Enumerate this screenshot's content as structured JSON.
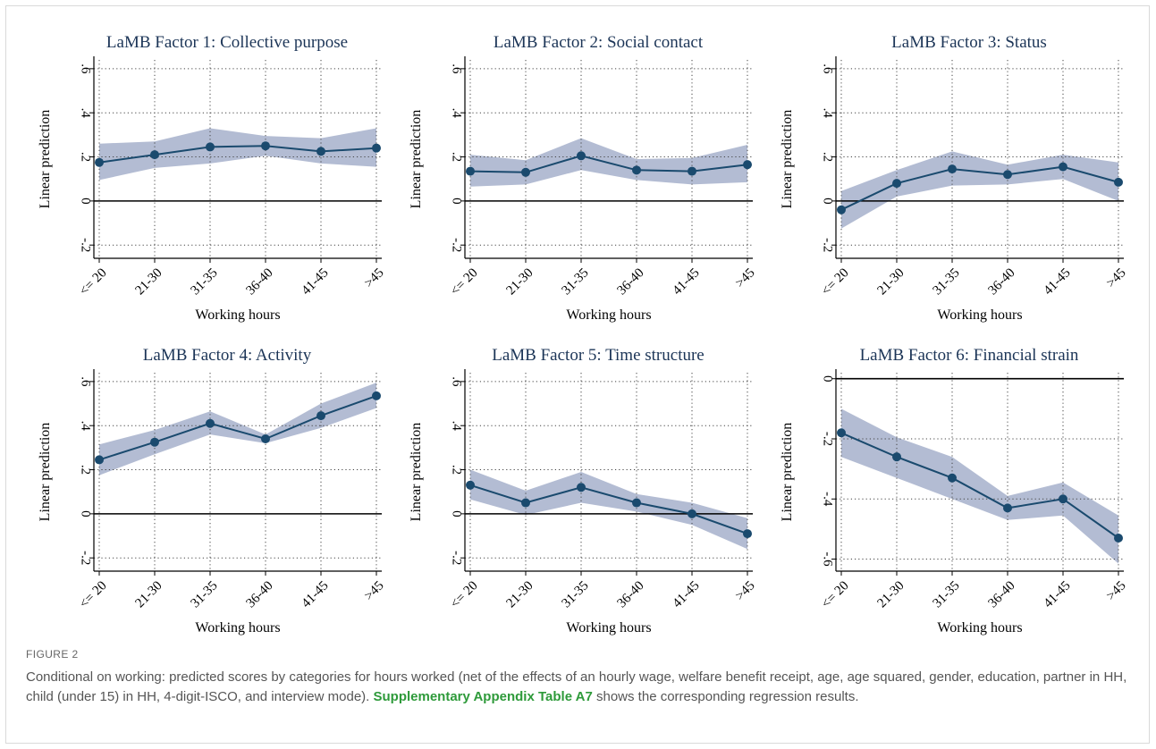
{
  "chart_data": [
    {
      "type": "line",
      "title": "LaMB Factor 1: Collective purpose",
      "xlabel": "Working hours",
      "ylabel": "Linear prediction",
      "categories": [
        "<= 20",
        "21-30",
        "31-35",
        "36-40",
        "41-45",
        ">45"
      ],
      "yticks": [
        -0.2,
        0,
        0.2,
        0.4,
        0.6
      ],
      "ytick_labels": [
        "-.2",
        "0",
        ".2",
        ".4",
        ".6"
      ],
      "ylim": [
        -0.26,
        0.64
      ],
      "values": [
        0.175,
        0.21,
        0.245,
        0.25,
        0.225,
        0.24
      ],
      "ci_lower": [
        0.095,
        0.15,
        0.17,
        0.205,
        0.17,
        0.155
      ],
      "ci_upper": [
        0.26,
        0.27,
        0.33,
        0.295,
        0.285,
        0.33
      ],
      "grid": true,
      "reference_line": 0
    },
    {
      "type": "line",
      "title": "LaMB Factor 2: Social contact",
      "xlabel": "Working hours",
      "ylabel": "Linear prediction",
      "categories": [
        "<= 20",
        "21-30",
        "31-35",
        "36-40",
        "41-45",
        ">45"
      ],
      "yticks": [
        -0.2,
        0,
        0.2,
        0.4,
        0.6
      ],
      "ytick_labels": [
        "-.2",
        "0",
        ".2",
        ".4",
        ".6"
      ],
      "ylim": [
        -0.26,
        0.64
      ],
      "values": [
        0.135,
        0.13,
        0.205,
        0.14,
        0.135,
        0.165
      ],
      "ci_lower": [
        0.065,
        0.075,
        0.14,
        0.095,
        0.075,
        0.085
      ],
      "ci_upper": [
        0.21,
        0.185,
        0.285,
        0.19,
        0.195,
        0.255
      ],
      "grid": true,
      "reference_line": 0
    },
    {
      "type": "line",
      "title": "LaMB Factor 3: Status",
      "xlabel": "Working hours",
      "ylabel": "Linear prediction",
      "categories": [
        "<= 20",
        "21-30",
        "31-35",
        "36-40",
        "41-45",
        ">45"
      ],
      "yticks": [
        -0.2,
        0,
        0.2,
        0.4,
        0.6
      ],
      "ytick_labels": [
        "-.2",
        "0",
        ".2",
        ".4",
        ".6"
      ],
      "ylim": [
        -0.26,
        0.64
      ],
      "values": [
        -0.04,
        0.08,
        0.145,
        0.12,
        0.155,
        0.085
      ],
      "ci_lower": [
        -0.125,
        0.02,
        0.07,
        0.075,
        0.1,
        0.0
      ],
      "ci_upper": [
        0.045,
        0.14,
        0.225,
        0.165,
        0.21,
        0.175
      ],
      "grid": true,
      "reference_line": 0
    },
    {
      "type": "line",
      "title": "LaMB Factor 4: Activity",
      "xlabel": "Working hours",
      "ylabel": "Linear prediction",
      "categories": [
        "<= 20",
        "21-30",
        "31-35",
        "36-40",
        "41-45",
        ">45"
      ],
      "yticks": [
        -0.2,
        0,
        0.2,
        0.4,
        0.6
      ],
      "ytick_labels": [
        "-.2",
        "0",
        ".2",
        ".4",
        ".6"
      ],
      "ylim": [
        -0.26,
        0.64
      ],
      "values": [
        0.245,
        0.325,
        0.41,
        0.34,
        0.445,
        0.535
      ],
      "ci_lower": [
        0.175,
        0.27,
        0.36,
        0.32,
        0.39,
        0.48
      ],
      "ci_upper": [
        0.315,
        0.38,
        0.465,
        0.36,
        0.5,
        0.595
      ],
      "grid": true,
      "reference_line": 0
    },
    {
      "type": "line",
      "title": "LaMB Factor 5: Time structure",
      "xlabel": "Working hours",
      "ylabel": "Linear prediction",
      "categories": [
        "<= 20",
        "21-30",
        "31-35",
        "36-40",
        "41-45",
        ">45"
      ],
      "yticks": [
        -0.2,
        0,
        0.2,
        0.4,
        0.6
      ],
      "ytick_labels": [
        "-.2",
        "0",
        ".2",
        ".4",
        ".6"
      ],
      "ylim": [
        -0.26,
        0.64
      ],
      "values": [
        0.13,
        0.05,
        0.12,
        0.05,
        0.0,
        -0.09
      ],
      "ci_lower": [
        0.065,
        -0.005,
        0.05,
        0.01,
        -0.05,
        -0.16
      ],
      "ci_upper": [
        0.2,
        0.105,
        0.19,
        0.09,
        0.05,
        -0.02
      ],
      "grid": true,
      "reference_line": 0
    },
    {
      "type": "line",
      "title": "LaMB Factor 6: Financial strain",
      "xlabel": "Working hours",
      "ylabel": "Linear prediction",
      "categories": [
        "<= 20",
        "21-30",
        "31-35",
        "36-40",
        "41-45",
        ">45"
      ],
      "yticks": [
        -0.6,
        -0.4,
        -0.2,
        0
      ],
      "ytick_labels": [
        "-.6",
        "-.4",
        "-.2",
        "0"
      ],
      "ylim": [
        -0.64,
        0.02
      ],
      "values": [
        -0.18,
        -0.26,
        -0.33,
        -0.43,
        -0.4,
        -0.53
      ],
      "ci_lower": [
        -0.26,
        -0.33,
        -0.4,
        -0.47,
        -0.455,
        -0.615
      ],
      "ci_upper": [
        -0.1,
        -0.195,
        -0.26,
        -0.39,
        -0.345,
        -0.455
      ],
      "grid": true,
      "reference_line": 0
    }
  ],
  "caption": {
    "label": "FIGURE 2",
    "text": "Conditional on working: predicted scores by categories for hours worked (net of the effects of an hourly wage, welfare benefit receipt, age, age squared, gender, education, partner in HH, child (under 15) in HH, 4-digit-ISCO, and interview mode).",
    "link": "Supplementary Appendix Table A7",
    "text_after": "shows the corresponding regression results."
  },
  "colors": {
    "line": "#1a4a6e",
    "marker": "#1a4a6e",
    "band": "#b3bcd3",
    "title": "#1c3557",
    "grid": "#444444"
  }
}
